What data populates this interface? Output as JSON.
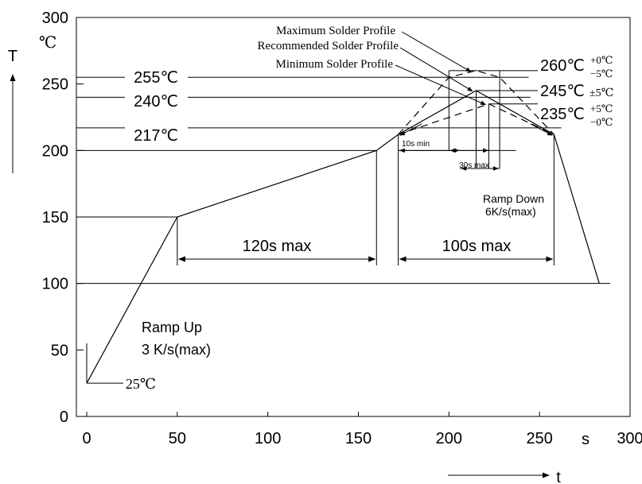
{
  "chart_data": {
    "type": "line",
    "title": "",
    "xlabel": "s",
    "ylabel": "T",
    "y_unit": "℃",
    "xlim": [
      0,
      300
    ],
    "ylim": [
      0,
      300
    ],
    "x_ticks": [
      "0",
      "50",
      "100",
      "150",
      "200",
      "250",
      "300"
    ],
    "y_ticks": [
      "0",
      "50",
      "100",
      "150",
      "200",
      "250",
      "300"
    ],
    "t_arrow_label": "t",
    "series": [
      {
        "name": "Recommended Solder Profile",
        "style": "solid",
        "x": [
          0,
          50,
          160,
          172,
          215,
          258,
          283
        ],
        "y": [
          25,
          150,
          200,
          212,
          245,
          212,
          100
        ]
      },
      {
        "name": "Maximum Solder Profile",
        "style": "dashed",
        "x": [
          172,
          200,
          215,
          228,
          258
        ],
        "y": [
          212,
          255,
          260,
          255,
          212
        ]
      },
      {
        "name": "Minimum Solder Profile",
        "style": "dashed",
        "x": [
          172,
          222,
          258
        ],
        "y": [
          212,
          235,
          212
        ]
      }
    ],
    "temp_labels": [
      {
        "text": "255℃",
        "y": 255
      },
      {
        "text": "240℃",
        "y": 240
      },
      {
        "text": "217℃",
        "y": 217
      },
      {
        "text": "25℃",
        "y": 25
      }
    ],
    "peak_labels": [
      {
        "main": "260℃",
        "tol_top": "+0℃",
        "tol_bottom": "−5℃",
        "y": 260
      },
      {
        "main": "245℃",
        "tol_single": "±5℃",
        "y": 245
      },
      {
        "main": "235℃",
        "tol_top": "+5℃",
        "tol_bottom": "−0℃",
        "y": 235
      }
    ],
    "annotations": {
      "preheat_duration": "120s max",
      "reflow_duration": "100s max",
      "ten_s_min": "10s min",
      "thirty_s_max": "30s max",
      "ramp_up": [
        "Ramp Up",
        "3 K/s(max)"
      ],
      "ramp_down": [
        "Ramp Down",
        "6K/s(max)"
      ]
    },
    "colors": {
      "line": "#000000",
      "background": "#ffffff"
    }
  }
}
